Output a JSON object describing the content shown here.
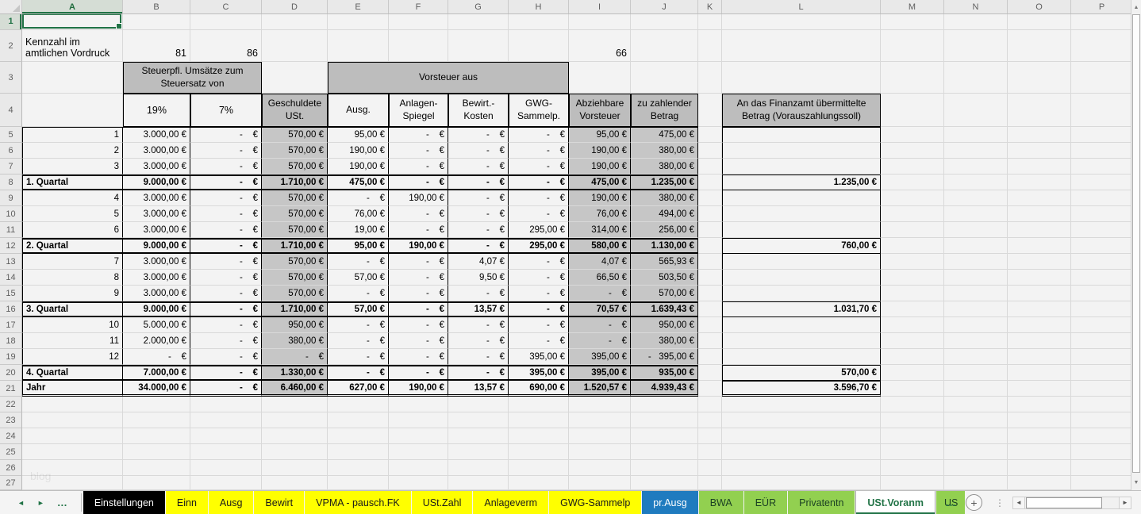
{
  "app": {
    "watermark": "blog"
  },
  "columns": [
    "A",
    "B",
    "C",
    "D",
    "E",
    "F",
    "G",
    "H",
    "I",
    "J",
    "K",
    "L",
    "M",
    "N",
    "O",
    "P"
  ],
  "row_count": 27,
  "top": {
    "kennzahl_label": "Kennzahl im\namtlichen Vordruck",
    "kennzahl_b": "81",
    "kennzahl_c": "86",
    "kennzahl_i": "66"
  },
  "headers": {
    "steuerpfl": "Steuerpfl. Umsätze zum Steuersatz von",
    "vorsteuer_aus": "Vorsteuer aus",
    "rate19": "19%",
    "rate7": "7%",
    "geschuldete": "Geschuldete USt.",
    "ausg": "Ausg.",
    "anlagen": "Anlagen-Spiegel",
    "bewirt": "Bewirt.-Kosten",
    "gwg": "GWG-Sammelp.",
    "abziehbare": "Abziehbare Vorsteuer",
    "zu_zahlender": "zu zahlender Betrag",
    "finanzamt": "An das Finanzamt übermittelte Betrag (Vorauszahlungssoll)"
  },
  "table": {
    "rows": [
      {
        "n": 5,
        "a": "1",
        "b": "3.000,00 €",
        "c": "-    €",
        "d": "570,00 €",
        "e": "95,00 €",
        "f": "-    €",
        "g": "-    €",
        "h": "-    €",
        "i": "95,00 €",
        "j": "475,00 €",
        "l": "",
        "kind": "month"
      },
      {
        "n": 6,
        "a": "2",
        "b": "3.000,00 €",
        "c": "-    €",
        "d": "570,00 €",
        "e": "190,00 €",
        "f": "-    €",
        "g": "-    €",
        "h": "-    €",
        "i": "190,00 €",
        "j": "380,00 €",
        "l": "",
        "kind": "month"
      },
      {
        "n": 7,
        "a": "3",
        "b": "3.000,00 €",
        "c": "-    €",
        "d": "570,00 €",
        "e": "190,00 €",
        "f": "-    €",
        "g": "-    €",
        "h": "-    €",
        "i": "190,00 €",
        "j": "380,00 €",
        "l": "",
        "kind": "month"
      },
      {
        "n": 8,
        "a": "1. Quartal",
        "b": "9.000,00 €",
        "c": "-    €",
        "d": "1.710,00 €",
        "e": "475,00 €",
        "f": "-    €",
        "g": "-    €",
        "h": "-    €",
        "i": "475,00 €",
        "j": "1.235,00 €",
        "l": "1.235,00 €",
        "kind": "quartal"
      },
      {
        "n": 9,
        "a": "4",
        "b": "3.000,00 €",
        "c": "-    €",
        "d": "570,00 €",
        "e": "-    €",
        "f": "190,00 €",
        "g": "-    €",
        "h": "-    €",
        "i": "190,00 €",
        "j": "380,00 €",
        "l": "",
        "kind": "month"
      },
      {
        "n": 10,
        "a": "5",
        "b": "3.000,00 €",
        "c": "-    €",
        "d": "570,00 €",
        "e": "76,00 €",
        "f": "-    €",
        "g": "-    €",
        "h": "-    €",
        "i": "76,00 €",
        "j": "494,00 €",
        "l": "",
        "kind": "month"
      },
      {
        "n": 11,
        "a": "6",
        "b": "3.000,00 €",
        "c": "-    €",
        "d": "570,00 €",
        "e": "19,00 €",
        "f": "-    €",
        "g": "-    €",
        "h": "295,00 €",
        "i": "314,00 €",
        "j": "256,00 €",
        "l": "",
        "kind": "month"
      },
      {
        "n": 12,
        "a": "2. Quartal",
        "b": "9.000,00 €",
        "c": "-    €",
        "d": "1.710,00 €",
        "e": "95,00 €",
        "f": "190,00 €",
        "g": "-    €",
        "h": "295,00 €",
        "i": "580,00 €",
        "j": "1.130,00 €",
        "l": "760,00 €",
        "kind": "quartal"
      },
      {
        "n": 13,
        "a": "7",
        "b": "3.000,00 €",
        "c": "-    €",
        "d": "570,00 €",
        "e": "-    €",
        "f": "-    €",
        "g": "4,07 €",
        "h": "-    €",
        "i": "4,07 €",
        "j": "565,93 €",
        "l": "",
        "kind": "month"
      },
      {
        "n": 14,
        "a": "8",
        "b": "3.000,00 €",
        "c": "-    €",
        "d": "570,00 €",
        "e": "57,00 €",
        "f": "-    €",
        "g": "9,50 €",
        "h": "-    €",
        "i": "66,50 €",
        "j": "503,50 €",
        "l": "",
        "kind": "month"
      },
      {
        "n": 15,
        "a": "9",
        "b": "3.000,00 €",
        "c": "-    €",
        "d": "570,00 €",
        "e": "-    €",
        "f": "-    €",
        "g": "-    €",
        "h": "-    €",
        "i": "-    €",
        "j": "570,00 €",
        "l": "",
        "kind": "month"
      },
      {
        "n": 16,
        "a": "3. Quartal",
        "b": "9.000,00 €",
        "c": "-    €",
        "d": "1.710,00 €",
        "e": "57,00 €",
        "f": "-    €",
        "g": "13,57 €",
        "h": "-    €",
        "i": "70,57 €",
        "j": "1.639,43 €",
        "l": "1.031,70 €",
        "kind": "quartal"
      },
      {
        "n": 17,
        "a": "10",
        "b": "5.000,00 €",
        "c": "-    €",
        "d": "950,00 €",
        "e": "-    €",
        "f": "-    €",
        "g": "-    €",
        "h": "-    €",
        "i": "-    €",
        "j": "950,00 €",
        "l": "",
        "kind": "month"
      },
      {
        "n": 18,
        "a": "11",
        "b": "2.000,00 €",
        "c": "-    €",
        "d": "380,00 €",
        "e": "-    €",
        "f": "-    €",
        "g": "-    €",
        "h": "-    €",
        "i": "-    €",
        "j": "380,00 €",
        "l": "",
        "kind": "month"
      },
      {
        "n": 19,
        "a": "12",
        "b": "-    €",
        "c": "-    €",
        "d": "-    €",
        "e": "-    €",
        "f": "-    €",
        "g": "-    €",
        "h": "395,00 €",
        "i": "395,00 €",
        "j": "-   395,00 €",
        "l": "",
        "kind": "month"
      },
      {
        "n": 20,
        "a": "4. Quartal",
        "b": "7.000,00 €",
        "c": "-    €",
        "d": "1.330,00 €",
        "e": "-    €",
        "f": "-    €",
        "g": "-    €",
        "h": "395,00 €",
        "i": "395,00 €",
        "j": "935,00 €",
        "l": "570,00 €",
        "kind": "quartal"
      },
      {
        "n": 21,
        "a": "Jahr",
        "b": "34.000,00 €",
        "c": "-    €",
        "d": "6.460,00 €",
        "e": "627,00 €",
        "f": "190,00 €",
        "g": "13,57 €",
        "h": "690,00 €",
        "i": "1.520,57 €",
        "j": "4.939,43 €",
        "l": "3.596,70 €",
        "kind": "jahr"
      }
    ]
  },
  "tabs": {
    "items": [
      {
        "label": "Einstellungen",
        "color": "black"
      },
      {
        "label": "Einn",
        "color": "yellow"
      },
      {
        "label": "Ausg",
        "color": "yellow"
      },
      {
        "label": "Bewirt",
        "color": "yellow"
      },
      {
        "label": "VPMA - pausch.FK",
        "color": "yellow"
      },
      {
        "label": "USt.Zahl",
        "color": "yellow"
      },
      {
        "label": "Anlageverm",
        "color": "yellow"
      },
      {
        "label": "GWG-Sammelp",
        "color": "yellow"
      },
      {
        "label": "pr.Ausg",
        "color": "blue"
      },
      {
        "label": "BWA",
        "color": "green"
      },
      {
        "label": "EÜR",
        "color": "green"
      },
      {
        "label": "Privatentn",
        "color": "green"
      },
      {
        "label": "USt.Voranm",
        "color": "active"
      },
      {
        "label": "US",
        "color": "green",
        "partial": true
      }
    ]
  },
  "icons": {
    "prev": "◄",
    "next": "►",
    "ellipsis": "…",
    "add": "+",
    "dots": "⋮",
    "left": "◄",
    "right": "►",
    "up": "▲",
    "down": "▼"
  },
  "colors": {
    "accent": "#217346",
    "tab_yellow": "#ffff00",
    "tab_blue": "#1f7bbf",
    "tab_green": "#92d050",
    "tab_black": "#000000",
    "header_fill": "#bdbdbd",
    "col_fill": "#c6c6c6"
  }
}
